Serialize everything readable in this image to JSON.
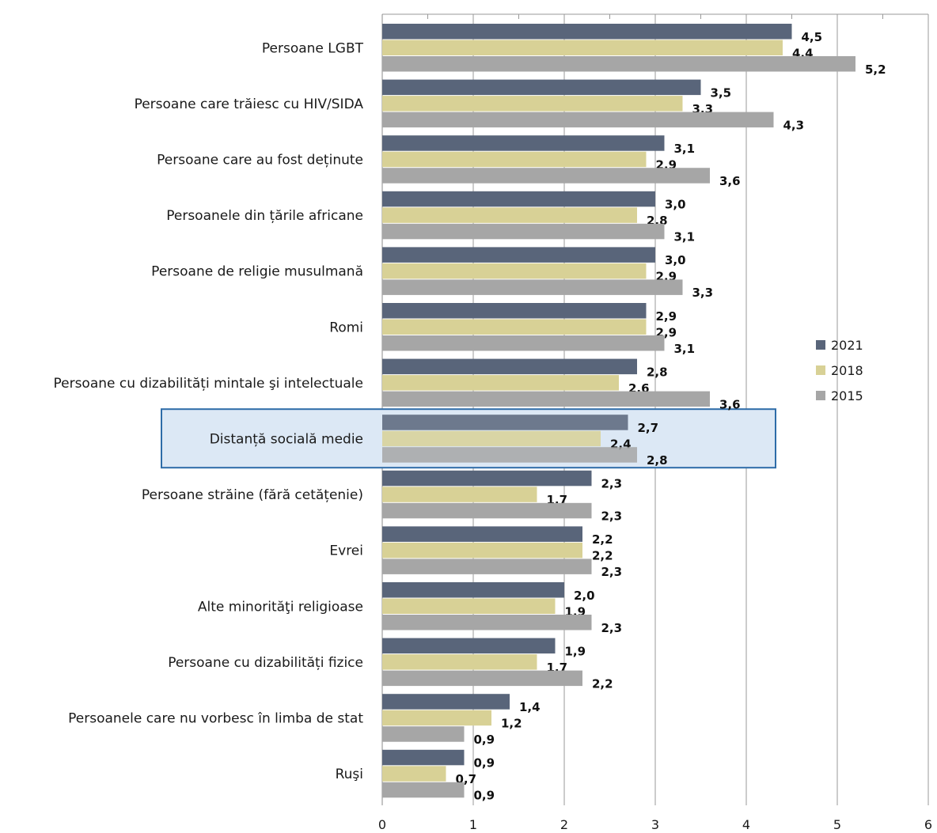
{
  "chart_data": {
    "type": "bar",
    "orientation": "horizontal",
    "categories": [
      "Persoane LGBT",
      "Persoane care trăiesc cu HIV/SIDA",
      "Persoane care au fost deținute",
      "Persoanele din țările africane",
      "Persoane de religie musulmană ",
      "Romi ",
      "Persoane cu dizabilități mintale şi intelectuale",
      "Distanță socială medie",
      "Persoane străine (fără cetățenie)",
      "Evrei",
      "Alte minorităţi religioase ",
      "Persoane cu dizabilități fizice",
      "Persoanele care nu vorbesc în limba de stat",
      "Ruşi"
    ],
    "series": [
      {
        "name": "2021",
        "color": "#59657a",
        "values": [
          4.5,
          3.5,
          3.1,
          3.0,
          3.0,
          2.9,
          2.8,
          2.7,
          2.3,
          2.2,
          2.0,
          1.9,
          1.4,
          0.9
        ]
      },
      {
        "name": "2018",
        "color": "#d8d196",
        "values": [
          4.4,
          3.3,
          2.9,
          2.8,
          2.9,
          2.9,
          2.6,
          2.4,
          1.7,
          2.2,
          1.9,
          1.7,
          1.2,
          0.7
        ]
      },
      {
        "name": "2015",
        "color": "#a6a6a6",
        "values": [
          5.2,
          4.3,
          3.6,
          3.1,
          3.3,
          3.1,
          3.6,
          2.8,
          2.3,
          2.3,
          2.3,
          2.2,
          0.9,
          0.9
        ]
      }
    ],
    "value_labels": [
      [
        "4,5",
        "3,5",
        "3,1",
        "3,0",
        "3,0",
        "2,9",
        "2,8",
        "2,7",
        "2,3",
        "2,2",
        "2,0",
        "1,9",
        "1,4",
        "0,9"
      ],
      [
        "4,4",
        "3,3",
        "2,9",
        "2,8",
        "2,9",
        "2,9",
        "2,6",
        "2,4",
        "1,7",
        "2,2",
        "1,9",
        "1,7",
        "1,2",
        "0,7"
      ],
      [
        "5,2",
        "4,3",
        "3,6",
        "3,1",
        "3,3",
        "3,1",
        "3,6",
        "2,8",
        "2,3",
        "2,3",
        "2,3",
        "2,2",
        "0,9",
        "0,9"
      ]
    ],
    "x_ticks": [
      0,
      1,
      2,
      3,
      4,
      5,
      6
    ],
    "xlim": [
      0,
      6
    ],
    "grid": true,
    "legend_position": "right",
    "highlighted_category": "Distanță socială medie",
    "highlight_color": "#dce8f5",
    "highlight_border": "#2e6ca8",
    "title": "",
    "xlabel": "",
    "ylabel": ""
  }
}
